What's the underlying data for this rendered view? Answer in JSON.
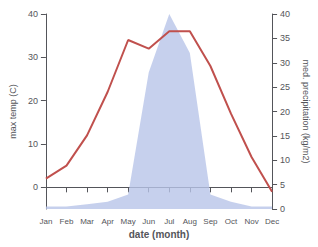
{
  "chart_data": {
    "type": "line",
    "xlabel": "date (month)",
    "ylabel": "max temp (C)",
    "y2label": "med. precipitation (kg/m2)",
    "categories": [
      "Jan",
      "Feb",
      "Mar",
      "Apr",
      "May",
      "Jun",
      "Jul",
      "Aug",
      "Sep",
      "Oct",
      "Nov",
      "Dec"
    ],
    "series": [
      {
        "type": "area",
        "axis": "y2",
        "color": "#b8c4e8",
        "values": [
          0.5,
          0.5,
          1,
          1.5,
          3,
          28,
          40,
          32,
          3,
          1.5,
          0.5,
          0.5
        ]
      },
      {
        "type": "line",
        "color": "#c0504d",
        "values": [
          2,
          5,
          12,
          22,
          34,
          32,
          36,
          36,
          28,
          17,
          7,
          -1
        ]
      }
    ],
    "ylim": [
      -5,
      40
    ],
    "yticks": [
      0,
      10,
      20,
      30,
      40
    ],
    "y2lim": [
      0,
      40
    ],
    "y2ticks": [
      0,
      5,
      10,
      15,
      20,
      25,
      30,
      35,
      40
    ],
    "grid": false
  }
}
